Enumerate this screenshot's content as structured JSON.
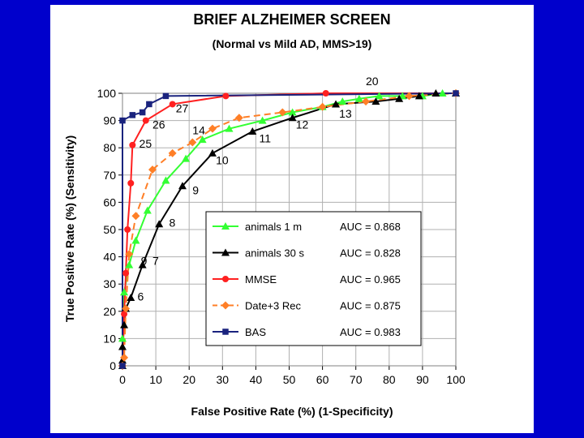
{
  "chart_data": {
    "type": "line",
    "title": "BRIEF ALZHEIMER SCREEN",
    "subtitle": "(Normal vs Mild AD, MMS>19)",
    "xlabel": "False Positive Rate (%)  (1-Specificity)",
    "ylabel": "True Positive Rate  (%)  (Sensitivity)",
    "xlim": [
      0,
      100
    ],
    "ylim": [
      0,
      100
    ],
    "xticks": [
      "0",
      "10",
      "20",
      "30",
      "40",
      "50",
      "60",
      "70",
      "80",
      "90",
      "100"
    ],
    "yticks": [
      "0",
      "10",
      "20",
      "30",
      "40",
      "50",
      "60",
      "70",
      "80",
      "90",
      "100"
    ],
    "grid": true,
    "legend_position": "bottom-right",
    "series": [
      {
        "name": "animals 1 m",
        "auc": "AUC = 0.868",
        "color": "#33ff33",
        "marker": "triangle",
        "dashed": false,
        "points": [
          [
            0,
            0
          ],
          [
            0,
            10
          ],
          [
            0.5,
            27
          ],
          [
            2,
            37
          ],
          [
            4,
            46
          ],
          [
            7.5,
            57
          ],
          [
            13,
            68
          ],
          [
            19,
            76
          ],
          [
            24,
            83
          ],
          [
            32,
            87
          ],
          [
            42,
            90
          ],
          [
            51,
            93
          ],
          [
            60,
            95
          ],
          [
            66,
            97
          ],
          [
            71,
            98
          ],
          [
            77,
            99
          ],
          [
            84,
            99
          ],
          [
            90,
            99
          ],
          [
            96,
            100
          ],
          [
            100,
            100
          ]
        ]
      },
      {
        "name": "animals 30 s",
        "auc": "AUC = 0.828",
        "color": "#000000",
        "marker": "triangle",
        "dashed": false,
        "points": [
          [
            0,
            0
          ],
          [
            0,
            2
          ],
          [
            0,
            7
          ],
          [
            0.5,
            15
          ],
          [
            1,
            21
          ],
          [
            2.5,
            25
          ],
          [
            6,
            37
          ],
          [
            11,
            52
          ],
          [
            18,
            66
          ],
          [
            27,
            78
          ],
          [
            39,
            86
          ],
          [
            51,
            91
          ],
          [
            64,
            96
          ],
          [
            76,
            97
          ],
          [
            83,
            98
          ],
          [
            89,
            99
          ],
          [
            94,
            100
          ],
          [
            100,
            100
          ]
        ]
      },
      {
        "name": "MMSE",
        "auc": "AUC = 0.965",
        "color": "#ff2020",
        "marker": "circle",
        "dashed": false,
        "points": [
          [
            0,
            0
          ],
          [
            0.5,
            19
          ],
          [
            1,
            34
          ],
          [
            1.5,
            50
          ],
          [
            2.5,
            67
          ],
          [
            3,
            81
          ],
          [
            7,
            90
          ],
          [
            15,
            96
          ],
          [
            31,
            99
          ],
          [
            61,
            100
          ],
          [
            100,
            100
          ]
        ]
      },
      {
        "name": "Date+3 Rec",
        "auc": "AUC = 0.875",
        "color": "#ff7f27",
        "marker": "diamond",
        "dashed": true,
        "points": [
          [
            0,
            0
          ],
          [
            0.5,
            3
          ],
          [
            1,
            21
          ],
          [
            2,
            41
          ],
          [
            4,
            55
          ],
          [
            9,
            72
          ],
          [
            15,
            78
          ],
          [
            21,
            82
          ],
          [
            27,
            87
          ],
          [
            35,
            91
          ],
          [
            48,
            93
          ],
          [
            60,
            95
          ],
          [
            73,
            97
          ],
          [
            86,
            99
          ],
          [
            100,
            100
          ]
        ]
      },
      {
        "name": "BAS",
        "auc": "AUC = 0.983",
        "color": "#1a237e",
        "marker": "square",
        "dashed": false,
        "points": [
          [
            0,
            0
          ],
          [
            0,
            90
          ],
          [
            3,
            92
          ],
          [
            6,
            93
          ],
          [
            8,
            96
          ],
          [
            13,
            99
          ],
          [
            100,
            100
          ]
        ]
      }
    ],
    "annotations": [
      {
        "text": "20",
        "x": 73,
        "y": 103
      },
      {
        "text": "27",
        "x": 16,
        "y": 93
      },
      {
        "text": "26",
        "x": 9,
        "y": 87
      },
      {
        "text": "25",
        "x": 5,
        "y": 80
      },
      {
        "text": "14",
        "x": 21,
        "y": 85
      },
      {
        "text": "13",
        "x": 65,
        "y": 91
      },
      {
        "text": "12",
        "x": 52,
        "y": 87
      },
      {
        "text": "11",
        "x": 41,
        "y": 82
      },
      {
        "text": "10",
        "x": 28,
        "y": 74
      },
      {
        "text": "9",
        "x": 21,
        "y": 63
      },
      {
        "text": "8",
        "x": 14,
        "y": 51
      },
      {
        "text": "9",
        "x": 5.5,
        "y": 37
      },
      {
        "text": "7",
        "x": 9,
        "y": 37
      },
      {
        "text": "6",
        "x": 4.5,
        "y": 24
      }
    ]
  }
}
